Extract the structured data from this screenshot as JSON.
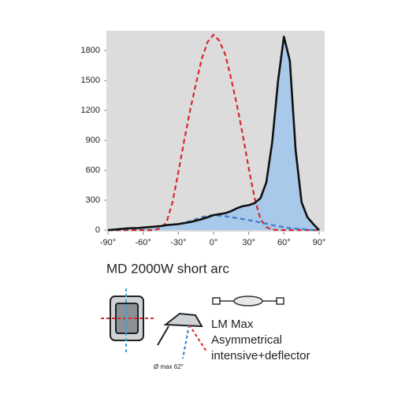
{
  "chart_data": {
    "type": "line",
    "x": [
      -90,
      -85,
      -80,
      -75,
      -70,
      -65,
      -60,
      -55,
      -50,
      -45,
      -40,
      -35,
      -30,
      -25,
      -20,
      -15,
      -10,
      -5,
      0,
      5,
      10,
      15,
      20,
      25,
      30,
      35,
      40,
      45,
      50,
      55,
      60,
      65,
      70,
      75,
      80,
      85,
      90
    ],
    "series": [
      {
        "color": "#d9262b",
        "dashed": true,
        "values": [
          0,
          0,
          0,
          0,
          0,
          0,
          0,
          0,
          0,
          20,
          80,
          280,
          580,
          900,
          1200,
          1470,
          1720,
          1890,
          1960,
          1900,
          1760,
          1520,
          1250,
          950,
          620,
          320,
          110,
          30,
          5,
          0,
          0,
          0,
          0,
          0,
          0,
          0,
          0
        ]
      },
      {
        "color": "#3a7bc8",
        "dashed": true,
        "values": [
          0,
          0,
          5,
          10,
          15,
          20,
          25,
          30,
          35,
          40,
          50,
          55,
          60,
          75,
          90,
          110,
          130,
          145,
          150,
          145,
          140,
          130,
          120,
          110,
          100,
          90,
          75,
          65,
          50,
          40,
          30,
          20,
          15,
          10,
          5,
          0,
          0
        ]
      },
      {
        "color": "#111111",
        "dashed": false,
        "fill": "#a9c9ea",
        "values": [
          0,
          5,
          10,
          15,
          20,
          20,
          25,
          30,
          35,
          40,
          50,
          55,
          60,
          70,
          80,
          95,
          110,
          130,
          150,
          160,
          170,
          190,
          220,
          240,
          250,
          270,
          320,
          480,
          880,
          1500,
          1940,
          1700,
          800,
          280,
          130,
          60,
          0
        ]
      }
    ],
    "xlim": [
      -90,
      90
    ],
    "ylim": [
      0,
      2000
    ],
    "xticks": [
      {
        "value": -90,
        "label": "-90°"
      },
      {
        "value": -60,
        "label": "-60°"
      },
      {
        "value": -30,
        "label": "-30°"
      },
      {
        "value": 0,
        "label": "0°"
      },
      {
        "value": 30,
        "label": "30°"
      },
      {
        "value": 60,
        "label": "60°"
      },
      {
        "value": 90,
        "label": "90°"
      }
    ],
    "yticks": [
      0,
      300,
      600,
      900,
      1200,
      1500,
      1800
    ],
    "plot_background": "#dcdcdc",
    "model": "MD 2000W  short arc",
    "description": [
      "LM Max",
      "Asymmetrical",
      "intensive+deflector"
    ],
    "beam_note": "Ø max 62°"
  }
}
